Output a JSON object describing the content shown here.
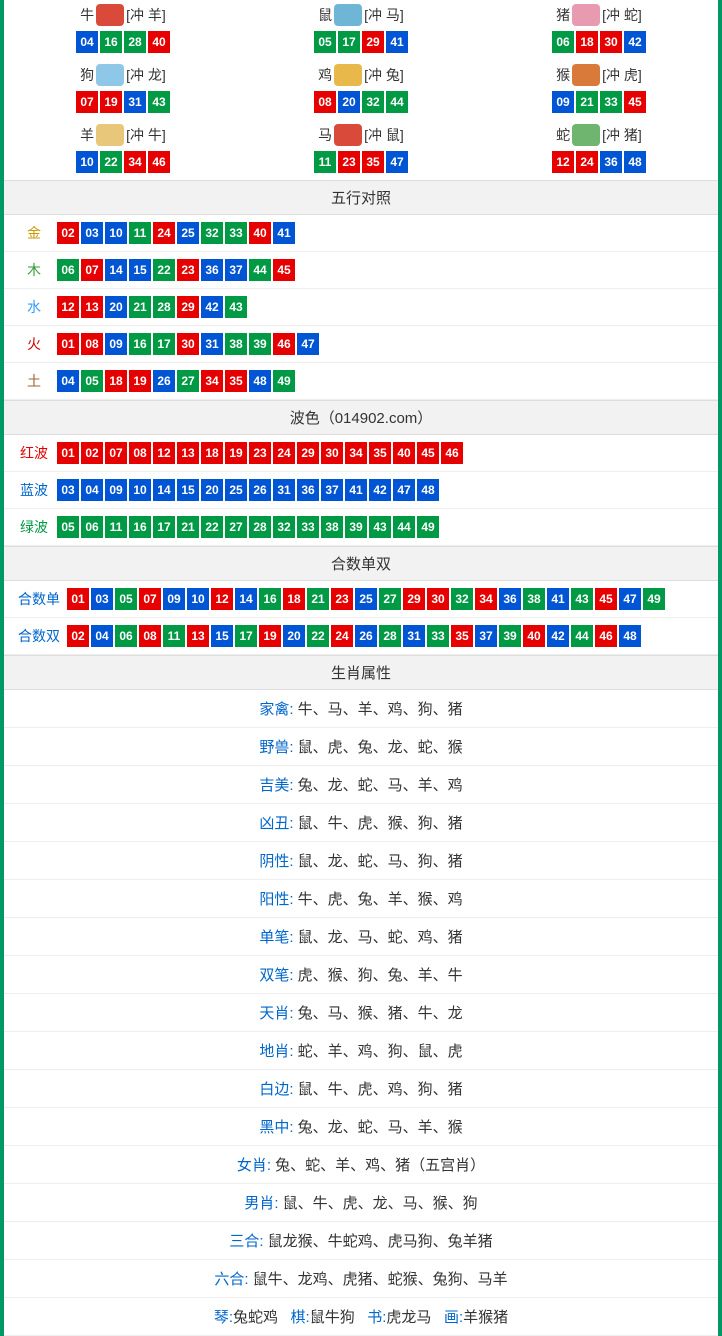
{
  "colors": {
    "red": "#e60000",
    "blue": "#0055d4",
    "green": "#009944",
    "border": "#009966",
    "header_bg": "#f2f2f2"
  },
  "zodiac": [
    {
      "name": "牛",
      "clash": "[冲 羊]",
      "icon_color": "#d94a3a",
      "nums": [
        "04",
        "16",
        "28",
        "40"
      ]
    },
    {
      "name": "鼠",
      "clash": "[冲 马]",
      "icon_color": "#6fb5d6",
      "nums": [
        "05",
        "17",
        "29",
        "41"
      ]
    },
    {
      "name": "猪",
      "clash": "[冲 蛇]",
      "icon_color": "#e89ab0",
      "nums": [
        "06",
        "18",
        "30",
        "42"
      ]
    },
    {
      "name": "狗",
      "clash": "[冲 龙]",
      "icon_color": "#8fc7e8",
      "nums": [
        "07",
        "19",
        "31",
        "43"
      ]
    },
    {
      "name": "鸡",
      "clash": "[冲 兔]",
      "icon_color": "#e8b84a",
      "nums": [
        "08",
        "20",
        "32",
        "44"
      ]
    },
    {
      "name": "猴",
      "clash": "[冲 虎]",
      "icon_color": "#d97a3a",
      "nums": [
        "09",
        "21",
        "33",
        "45"
      ]
    },
    {
      "name": "羊",
      "clash": "[冲 牛]",
      "icon_color": "#e8c77a",
      "nums": [
        "10",
        "22",
        "34",
        "46"
      ]
    },
    {
      "name": "马",
      "clash": "[冲 鼠]",
      "icon_color": "#d94a3a",
      "nums": [
        "11",
        "23",
        "35",
        "47"
      ]
    },
    {
      "name": "蛇",
      "clash": "[冲 猪]",
      "icon_color": "#6fb56f",
      "nums": [
        "12",
        "24",
        "36",
        "48"
      ]
    }
  ],
  "sections": {
    "wuxing_title": "五行对照",
    "bose_title": "波色（014902.com）",
    "heshu_title": "合数单双",
    "shuxing_title": "生肖属性"
  },
  "wuxing": [
    {
      "label": "金",
      "class": "lbl-gold",
      "nums": [
        "02",
        "03",
        "10",
        "11",
        "24",
        "25",
        "32",
        "33",
        "40",
        "41"
      ]
    },
    {
      "label": "木",
      "class": "lbl-wood",
      "nums": [
        "06",
        "07",
        "14",
        "15",
        "22",
        "23",
        "36",
        "37",
        "44",
        "45"
      ]
    },
    {
      "label": "水",
      "class": "lbl-water",
      "nums": [
        "12",
        "13",
        "20",
        "21",
        "28",
        "29",
        "42",
        "43"
      ]
    },
    {
      "label": "火",
      "class": "lbl-fire",
      "nums": [
        "01",
        "08",
        "09",
        "16",
        "17",
        "30",
        "31",
        "38",
        "39",
        "46",
        "47"
      ]
    },
    {
      "label": "土",
      "class": "lbl-earth",
      "nums": [
        "04",
        "05",
        "18",
        "19",
        "26",
        "27",
        "34",
        "35",
        "48",
        "49"
      ]
    }
  ],
  "bose": [
    {
      "label": "红波",
      "class": "lbl-red",
      "nums": [
        "01",
        "02",
        "07",
        "08",
        "12",
        "13",
        "18",
        "19",
        "23",
        "24",
        "29",
        "30",
        "34",
        "35",
        "40",
        "45",
        "46"
      ]
    },
    {
      "label": "蓝波",
      "class": "lbl-blue",
      "nums": [
        "03",
        "04",
        "09",
        "10",
        "14",
        "15",
        "20",
        "25",
        "26",
        "31",
        "36",
        "37",
        "41",
        "42",
        "47",
        "48"
      ]
    },
    {
      "label": "绿波",
      "class": "lbl-green",
      "nums": [
        "05",
        "06",
        "11",
        "16",
        "17",
        "21",
        "22",
        "27",
        "28",
        "32",
        "33",
        "38",
        "39",
        "43",
        "44",
        "49"
      ]
    }
  ],
  "heshu": [
    {
      "label": "合数单",
      "class": "lbl-blue",
      "nums": [
        "01",
        "03",
        "05",
        "07",
        "09",
        "10",
        "12",
        "14",
        "16",
        "18",
        "21",
        "23",
        "25",
        "27",
        "29",
        "30",
        "32",
        "34",
        "36",
        "38",
        "41",
        "43",
        "45",
        "47",
        "49"
      ]
    },
    {
      "label": "合数双",
      "class": "lbl-blue",
      "nums": [
        "02",
        "04",
        "06",
        "08",
        "11",
        "13",
        "15",
        "17",
        "19",
        "20",
        "22",
        "24",
        "26",
        "28",
        "31",
        "33",
        "35",
        "37",
        "39",
        "40",
        "42",
        "44",
        "46",
        "48"
      ]
    }
  ],
  "red_set": [
    "01",
    "02",
    "07",
    "08",
    "12",
    "13",
    "18",
    "19",
    "23",
    "24",
    "29",
    "30",
    "34",
    "35",
    "40",
    "45",
    "46"
  ],
  "blue_set": [
    "03",
    "04",
    "09",
    "10",
    "14",
    "15",
    "20",
    "25",
    "26",
    "31",
    "36",
    "37",
    "41",
    "42",
    "47",
    "48"
  ],
  "green_set": [
    "05",
    "06",
    "11",
    "16",
    "17",
    "21",
    "22",
    "27",
    "28",
    "32",
    "33",
    "38",
    "39",
    "43",
    "44",
    "49"
  ],
  "attributes": [
    {
      "label": "家禽",
      "value": "牛、马、羊、鸡、狗、猪"
    },
    {
      "label": "野兽",
      "value": "鼠、虎、兔、龙、蛇、猴"
    },
    {
      "label": "吉美",
      "value": "兔、龙、蛇、马、羊、鸡"
    },
    {
      "label": "凶丑",
      "value": "鼠、牛、虎、猴、狗、猪"
    },
    {
      "label": "阴性",
      "value": "鼠、龙、蛇、马、狗、猪"
    },
    {
      "label": "阳性",
      "value": "牛、虎、兔、羊、猴、鸡"
    },
    {
      "label": "单笔",
      "value": "鼠、龙、马、蛇、鸡、猪"
    },
    {
      "label": "双笔",
      "value": "虎、猴、狗、兔、羊、牛"
    },
    {
      "label": "天肖",
      "value": "兔、马、猴、猪、牛、龙"
    },
    {
      "label": "地肖",
      "value": "蛇、羊、鸡、狗、鼠、虎"
    },
    {
      "label": "白边",
      "value": "鼠、牛、虎、鸡、狗、猪"
    },
    {
      "label": "黑中",
      "value": "兔、龙、蛇、马、羊、猴"
    },
    {
      "label": "女肖",
      "value": "兔、蛇、羊、鸡、猪（五宫肖）"
    },
    {
      "label": "男肖",
      "value": "鼠、牛、虎、龙、马、猴、狗"
    },
    {
      "label": "三合",
      "value": "鼠龙猴、牛蛇鸡、虎马狗、兔羊猪"
    },
    {
      "label": "六合",
      "value": "鼠牛、龙鸡、虎猪、蛇猴、兔狗、马羊"
    }
  ],
  "footer": [
    {
      "k": "琴",
      "v": "兔蛇鸡"
    },
    {
      "k": "棋",
      "v": "鼠牛狗"
    },
    {
      "k": "书",
      "v": "虎龙马"
    },
    {
      "k": "画",
      "v": "羊猴猪"
    }
  ]
}
